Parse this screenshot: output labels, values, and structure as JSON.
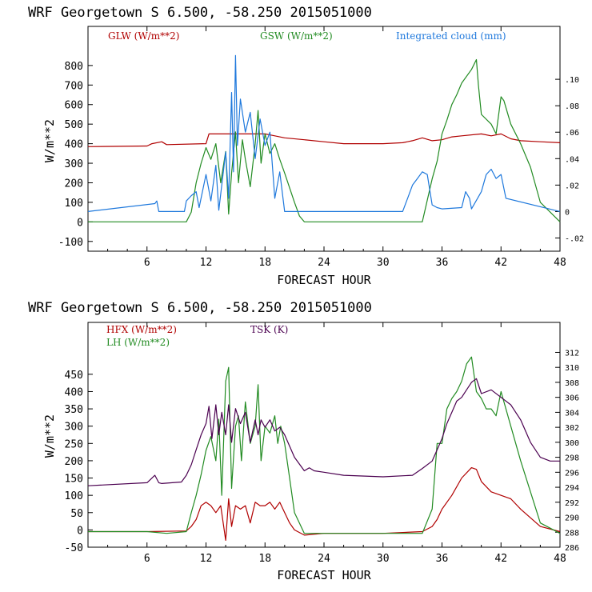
{
  "chart_data": [
    {
      "type": "line",
      "title": "WRF   Georgetown S   6.500, -58.250  2015051000",
      "xlabel": "FORECAST HOUR",
      "ylabel": "W/m**2",
      "xlim": [
        0,
        48
      ],
      "ylim": [
        -150,
        1000
      ],
      "y2lim": [
        -0.03,
        0.14
      ],
      "x_ticks": [
        "6",
        "12",
        "18",
        "24",
        "30",
        "36",
        "42",
        "48"
      ],
      "y_ticks": [
        "-100",
        "0",
        "100",
        "200",
        "300",
        "400",
        "500",
        "600",
        "700",
        "800"
      ],
      "y2_ticks": [
        "-.02",
        "0",
        ".02",
        ".04",
        ".06",
        ".08",
        ".10"
      ],
      "legend": [
        "GLW (W/m**2)",
        "GSW (W/m**2)",
        "Integrated cloud (mm)"
      ],
      "colors": [
        "#b00000",
        "#228b22",
        "#1e78dc"
      ],
      "series": [
        {
          "name": "GLW (W/m**2)",
          "axis": "left",
          "x": [
            0,
            6,
            6.5,
            7.5,
            8,
            12,
            12.3,
            18,
            19,
            20,
            22,
            24,
            26,
            30,
            32,
            33,
            34,
            35,
            36,
            37,
            38,
            40,
            41,
            42,
            43,
            44,
            46,
            48
          ],
          "y": [
            385,
            388,
            400,
            410,
            395,
            400,
            450,
            450,
            440,
            430,
            420,
            410,
            400,
            400,
            405,
            415,
            430,
            415,
            420,
            435,
            440,
            450,
            440,
            450,
            425,
            415,
            410,
            405
          ]
        },
        {
          "name": "GSW (W/m**2)",
          "axis": "left",
          "x": [
            0,
            10,
            10.5,
            11,
            11.5,
            12,
            12.5,
            13,
            13.5,
            14,
            14.3,
            14.6,
            15,
            15.3,
            15.7,
            16,
            16.5,
            17,
            17.3,
            17.6,
            18,
            18.5,
            19,
            19.5,
            20,
            21,
            21.5,
            22,
            34,
            35,
            35.5,
            36,
            36.5,
            37,
            37.5,
            38,
            39,
            39.5,
            39.7,
            40,
            41,
            41.5,
            42,
            42.3,
            43,
            44,
            45,
            46,
            48
          ],
          "y": [
            0,
            0,
            50,
            200,
            300,
            380,
            320,
            400,
            200,
            360,
            40,
            250,
            460,
            200,
            420,
            320,
            180,
            400,
            570,
            300,
            450,
            350,
            400,
            320,
            250,
            100,
            30,
            0,
            0,
            220,
            310,
            450,
            520,
            600,
            650,
            710,
            780,
            830,
            700,
            550,
            500,
            450,
            640,
            620,
            500,
            400,
            280,
            100,
            0
          ]
        },
        {
          "name": "Integrated cloud (mm)",
          "axis": "right",
          "x": [
            0,
            6.8,
            7,
            7.2,
            9.8,
            10,
            10.5,
            11,
            11.3,
            12,
            12.5,
            13,
            13.3,
            14,
            14.3,
            14.6,
            14.8,
            15,
            15.2,
            15.5,
            16,
            16.5,
            17,
            17.5,
            18,
            18.5,
            19,
            19.5,
            20,
            32,
            32.5,
            33,
            33.5,
            34,
            34.5,
            35,
            35.5,
            36,
            38,
            38.4,
            38.8,
            39,
            40,
            40.5,
            41,
            41.5,
            42,
            42.5,
            48
          ],
          "y": [
            0,
            0.006,
            0.008,
            0,
            0,
            0.008,
            0.012,
            0.015,
            0.003,
            0.028,
            0.008,
            0.035,
            0.001,
            0.045,
            0.01,
            0.09,
            0.03,
            0.118,
            0.05,
            0.085,
            0.06,
            0.075,
            0.04,
            0.07,
            0.05,
            0.06,
            0.01,
            0.03,
            0,
            0,
            0.01,
            0.02,
            0.025,
            0.03,
            0.028,
            0.005,
            0.003,
            0.002,
            0.003,
            0.015,
            0.01,
            0.002,
            0.015,
            0.028,
            0.032,
            0.025,
            0.028,
            0.01,
            0
          ]
        }
      ]
    },
    {
      "type": "line",
      "title": "WRF   Georgetown S   6.500, -58.250  2015051000",
      "xlabel": "FORECAST HOUR",
      "ylabel": "W/m**2",
      "xlim": [
        0,
        48
      ],
      "ylim": [
        -50,
        600
      ],
      "y2lim": [
        286,
        316
      ],
      "x_ticks": [
        "6",
        "12",
        "18",
        "24",
        "30",
        "36",
        "42",
        "48"
      ],
      "y_ticks": [
        "-50",
        "0",
        "50",
        "100",
        "150",
        "200",
        "250",
        "300",
        "350",
        "400",
        "450"
      ],
      "y2_ticks": [
        "286",
        "288",
        "290",
        "292",
        "294",
        "296",
        "298",
        "300",
        "302",
        "304",
        "306",
        "308",
        "310",
        "312"
      ],
      "legend": [
        "HFX (W/m**2)",
        "LH (W/m**2)",
        "TSK (K)"
      ],
      "colors": [
        "#b00000",
        "#228b22",
        "#4b0050"
      ],
      "series": [
        {
          "name": "HFX (W/m**2)",
          "axis": "left",
          "x": [
            0,
            6,
            10,
            10.5,
            11,
            11.5,
            12,
            12.5,
            13,
            13.5,
            14,
            14.3,
            14.6,
            15,
            15.5,
            16,
            16.5,
            17,
            17.5,
            18,
            18.5,
            19,
            19.5,
            20,
            20.5,
            21,
            22,
            24,
            30,
            34,
            35,
            35.5,
            36,
            37,
            38,
            39,
            39.5,
            40,
            41,
            42,
            43,
            44,
            46,
            48
          ],
          "y": [
            -5,
            -5,
            -3,
            10,
            30,
            70,
            80,
            70,
            50,
            70,
            -30,
            90,
            10,
            70,
            60,
            70,
            20,
            80,
            70,
            70,
            80,
            60,
            80,
            50,
            20,
            0,
            -15,
            -10,
            -10,
            -5,
            10,
            30,
            60,
            100,
            150,
            180,
            175,
            140,
            110,
            100,
            90,
            60,
            10,
            -5
          ]
        },
        {
          "name": "LH (W/m**2)",
          "axis": "left",
          "x": [
            0,
            6,
            8,
            10,
            10.5,
            11,
            11.5,
            12,
            12.5,
            13,
            13.3,
            13.6,
            14,
            14.3,
            14.6,
            15,
            15.3,
            15.6,
            16,
            16.5,
            17,
            17.3,
            17.6,
            18,
            18.5,
            19,
            19.3,
            19.6,
            20,
            20.5,
            21,
            22,
            24,
            34,
            35,
            35.5,
            36,
            36.5,
            37,
            37.5,
            38,
            38.5,
            39,
            39.5,
            40,
            40.5,
            41,
            41.5,
            42,
            43,
            44,
            46,
            48
          ],
          "y": [
            -5,
            -5,
            -10,
            -5,
            50,
            100,
            160,
            230,
            270,
            200,
            320,
            100,
            430,
            470,
            120,
            300,
            330,
            200,
            370,
            250,
            300,
            420,
            200,
            300,
            280,
            330,
            250,
            300,
            250,
            150,
            50,
            -10,
            -10,
            -10,
            60,
            250,
            250,
            350,
            380,
            400,
            430,
            480,
            500,
            400,
            380,
            350,
            350,
            330,
            400,
            300,
            200,
            20,
            -10
          ]
        },
        {
          "name": "TSK (K)",
          "axis": "right",
          "x": [
            0,
            6,
            6.8,
            7.2,
            7.5,
            9.5,
            10,
            10.5,
            11,
            11.5,
            12,
            12.3,
            12.6,
            13,
            13.3,
            13.6,
            14,
            14.3,
            14.6,
            15,
            15.5,
            16,
            16.5,
            17,
            17.3,
            17.6,
            18,
            18.5,
            19,
            19.5,
            20,
            21,
            22,
            22.5,
            23,
            24,
            26,
            30,
            33,
            34,
            35,
            35.5,
            36,
            36.5,
            37,
            37.5,
            38,
            38.5,
            39,
            39.5,
            40,
            41,
            42,
            43,
            44,
            45,
            46,
            47,
            48
          ],
          "y": [
            294.2,
            294.6,
            295.6,
            294.6,
            294.5,
            294.7,
            295.6,
            297.0,
            299.0,
            301.0,
            302.5,
            304.8,
            300.5,
            305.0,
            301.0,
            304.0,
            301.0,
            305.0,
            300.0,
            304.5,
            302.5,
            304.0,
            300.0,
            303.0,
            301.0,
            303.0,
            302.0,
            303.0,
            301.5,
            302.0,
            301.0,
            298.0,
            296.2,
            296.6,
            296.2,
            296.0,
            295.6,
            295.4,
            295.6,
            296.5,
            297.5,
            299.0,
            300.5,
            302.5,
            304.0,
            305.5,
            306.0,
            307.0,
            308.0,
            308.5,
            306.5,
            307.0,
            306.0,
            305.0,
            303.0,
            300.0,
            298.0,
            297.5,
            297.5
          ]
        }
      ]
    }
  ]
}
